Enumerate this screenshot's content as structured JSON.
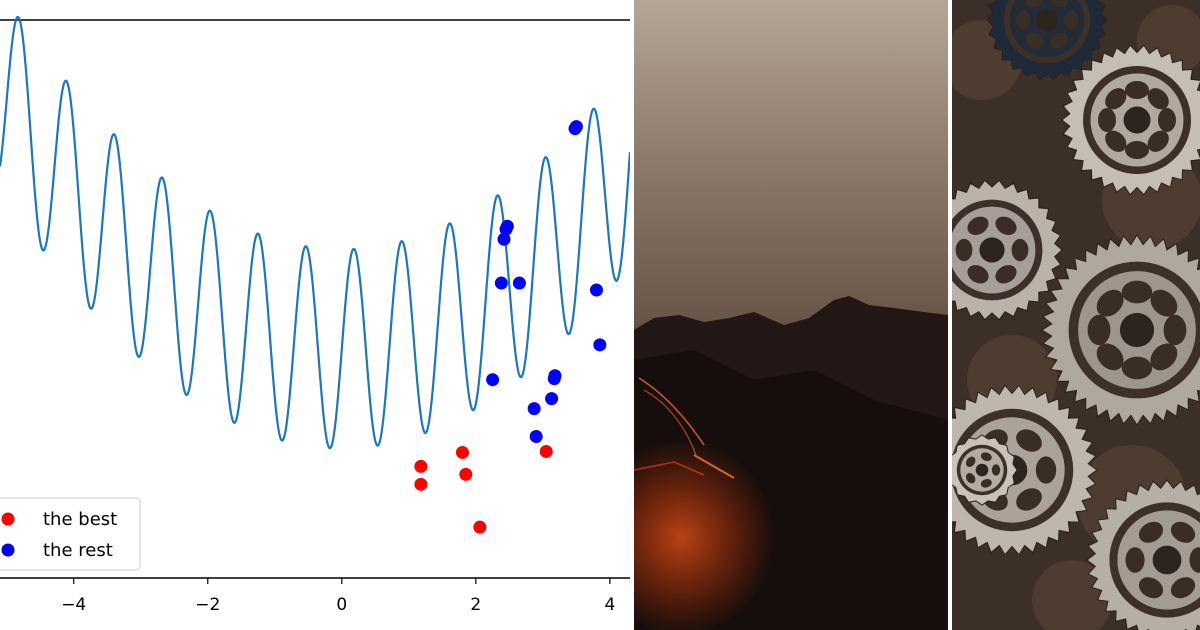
{
  "chart_data": {
    "type": "scatter",
    "xlim": [
      -5.1,
      4.3
    ],
    "ylim": [
      -2.3,
      3.3
    ],
    "x_ticks": [
      -4,
      -2,
      0,
      2,
      4
    ],
    "x_tick_labels": [
      "−4",
      "−2",
      "0",
      "2",
      "4"
    ],
    "grid": false,
    "legend_position": "bottom-left",
    "curve": {
      "function": "x^2/10 + sin(2.8*pi*x)",
      "color": "#1f77b4",
      "x_start": -5.1,
      "x_end": 4.3
    },
    "series": [
      {
        "name": "the best",
        "color": "#ff0000",
        "points": [
          {
            "x": 1.18,
            "y": -1.18
          },
          {
            "x": 1.18,
            "y": -1.36
          },
          {
            "x": 1.8,
            "y": -1.04
          },
          {
            "x": 1.85,
            "y": -1.26
          },
          {
            "x": 2.06,
            "y": -1.79
          },
          {
            "x": 3.05,
            "y": -1.03
          }
        ]
      },
      {
        "name": "the rest",
        "color": "#0000ff",
        "points": [
          {
            "x": 2.25,
            "y": -0.31
          },
          {
            "x": 2.38,
            "y": 0.66
          },
          {
            "x": 2.42,
            "y": 1.1
          },
          {
            "x": 2.45,
            "y": 1.2
          },
          {
            "x": 2.47,
            "y": 1.23
          },
          {
            "x": 2.65,
            "y": 0.66
          },
          {
            "x": 2.87,
            "y": -0.6
          },
          {
            "x": 2.9,
            "y": -0.88
          },
          {
            "x": 3.13,
            "y": -0.5
          },
          {
            "x": 3.17,
            "y": -0.3
          },
          {
            "x": 3.18,
            "y": -0.27
          },
          {
            "x": 3.48,
            "y": 2.21
          },
          {
            "x": 3.5,
            "y": 2.23
          },
          {
            "x": 3.8,
            "y": 0.59
          },
          {
            "x": 3.85,
            "y": 0.04
          }
        ]
      }
    ]
  },
  "photos": {
    "volcano": {
      "description_icon": "mountain-volcano-icon"
    },
    "gears": {
      "description_icon": "gear-icon"
    }
  }
}
